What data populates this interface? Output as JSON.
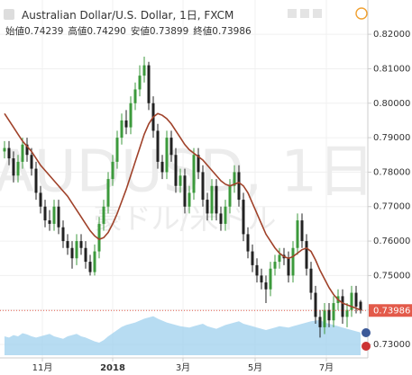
{
  "header": {
    "title": "Australian Dollar/U.S. Dollar, 1日, FXCM",
    "ohlc": [
      {
        "label": "始値",
        "value": "0.74239"
      },
      {
        "label": "高値",
        "value": "0.74290"
      },
      {
        "label": "安値",
        "value": "0.73899"
      },
      {
        "label": "終値",
        "value": "0.73986"
      }
    ]
  },
  "chart_data": {
    "type": "candlestick",
    "watermark": [
      "AUDUSD, 1日",
      "豪ドル/米ドル"
    ],
    "up_color": "#3c9a3c",
    "down_color": "#222222",
    "grid": true,
    "categories": [
      null,
      null,
      null,
      null,
      null,
      null,
      null,
      null,
      null,
      null,
      null,
      null,
      null,
      null,
      null,
      null,
      null,
      null,
      null,
      null,
      null,
      null,
      null,
      null,
      null,
      null,
      null,
      null,
      null,
      null,
      null,
      null,
      null,
      null,
      null,
      null,
      null,
      null,
      null,
      null,
      null,
      null,
      null,
      null,
      null,
      null,
      null,
      null,
      null,
      null,
      null,
      null,
      null,
      null,
      null,
      null,
      null,
      null,
      null,
      null,
      null,
      null,
      null,
      null,
      null,
      null,
      null,
      null,
      null,
      null,
      null,
      null,
      null,
      null,
      null,
      null,
      null,
      null,
      null,
      null
    ],
    "open": [
      0.786,
      0.787,
      0.784,
      0.779,
      0.783,
      0.788,
      0.785,
      0.781,
      0.774,
      0.77,
      0.766,
      0.765,
      0.77,
      0.764,
      0.76,
      0.758,
      0.755,
      0.76,
      0.758,
      0.754,
      0.751,
      0.757,
      0.765,
      0.77,
      0.778,
      0.783,
      0.79,
      0.795,
      0.793,
      0.8,
      0.804,
      0.808,
      0.811,
      0.8,
      0.792,
      0.783,
      0.78,
      0.79,
      0.785,
      0.776,
      0.779,
      0.77,
      0.774,
      0.785,
      0.78,
      0.772,
      0.768,
      0.776,
      0.768,
      0.765,
      0.77,
      0.776,
      0.78,
      0.772,
      0.762,
      0.757,
      0.753,
      0.75,
      0.748,
      0.746,
      0.752,
      0.754,
      0.756,
      0.755,
      0.75,
      0.758,
      0.766,
      0.76,
      0.752,
      0.745,
      0.738,
      0.735,
      0.74,
      0.737,
      0.742,
      0.744,
      0.738,
      0.74,
      0.745,
      0.74239
    ],
    "high": [
      0.789,
      0.789,
      0.786,
      0.785,
      0.79,
      0.79,
      0.787,
      0.783,
      0.776,
      0.772,
      0.769,
      0.772,
      0.772,
      0.766,
      0.762,
      0.76,
      0.762,
      0.762,
      0.76,
      0.756,
      0.759,
      0.767,
      0.772,
      0.78,
      0.785,
      0.792,
      0.797,
      0.798,
      0.802,
      0.806,
      0.811,
      0.8135,
      0.812,
      0.802,
      0.794,
      0.785,
      0.792,
      0.792,
      0.787,
      0.781,
      0.781,
      0.776,
      0.787,
      0.787,
      0.782,
      0.774,
      0.778,
      0.778,
      0.77,
      0.772,
      0.778,
      0.782,
      0.782,
      0.774,
      0.764,
      0.759,
      0.755,
      0.752,
      0.75,
      0.754,
      0.756,
      0.758,
      0.758,
      0.757,
      0.76,
      0.768,
      0.768,
      0.762,
      0.754,
      0.747,
      0.74,
      0.742,
      0.742,
      0.744,
      0.746,
      0.746,
      0.742,
      0.747,
      0.747,
      0.7429
    ],
    "low": [
      0.784,
      0.782,
      0.777,
      0.777,
      0.781,
      0.783,
      0.779,
      0.772,
      0.768,
      0.764,
      0.763,
      0.763,
      0.762,
      0.758,
      0.756,
      0.752,
      0.753,
      0.756,
      0.752,
      0.75,
      0.75,
      0.755,
      0.763,
      0.768,
      0.776,
      0.781,
      0.788,
      0.791,
      0.791,
      0.798,
      0.802,
      0.806,
      0.798,
      0.79,
      0.781,
      0.778,
      0.778,
      0.783,
      0.774,
      0.774,
      0.768,
      0.768,
      0.772,
      0.778,
      0.77,
      0.766,
      0.766,
      0.766,
      0.763,
      0.763,
      0.768,
      0.774,
      0.77,
      0.76,
      0.755,
      0.751,
      0.748,
      0.746,
      0.742,
      0.744,
      0.75,
      0.752,
      0.753,
      0.748,
      0.748,
      0.756,
      0.758,
      0.75,
      0.743,
      0.736,
      0.732,
      0.733,
      0.735,
      0.735,
      0.74,
      0.736,
      0.735,
      0.738,
      0.739,
      0.73899
    ],
    "close": [
      0.787,
      0.784,
      0.779,
      0.783,
      0.788,
      0.785,
      0.781,
      0.774,
      0.77,
      0.766,
      0.765,
      0.77,
      0.764,
      0.76,
      0.758,
      0.755,
      0.76,
      0.758,
      0.754,
      0.751,
      0.757,
      0.765,
      0.77,
      0.778,
      0.783,
      0.79,
      0.795,
      0.793,
      0.8,
      0.804,
      0.808,
      0.811,
      0.8,
      0.792,
      0.783,
      0.78,
      0.79,
      0.785,
      0.776,
      0.779,
      0.77,
      0.774,
      0.785,
      0.78,
      0.772,
      0.768,
      0.776,
      0.768,
      0.765,
      0.77,
      0.776,
      0.78,
      0.772,
      0.762,
      0.757,
      0.753,
      0.75,
      0.748,
      0.746,
      0.752,
      0.754,
      0.756,
      0.755,
      0.75,
      0.758,
      0.766,
      0.76,
      0.752,
      0.745,
      0.738,
      0.735,
      0.74,
      0.737,
      0.742,
      0.744,
      0.738,
      0.74,
      0.745,
      0.741,
      0.73986
    ],
    "ma": {
      "color": "#a0422a",
      "values": [
        0.797,
        0.795,
        0.793,
        0.791,
        0.789,
        0.7875,
        0.786,
        0.784,
        0.782,
        0.7805,
        0.779,
        0.7775,
        0.776,
        0.7745,
        0.773,
        0.771,
        0.769,
        0.767,
        0.765,
        0.763,
        0.7615,
        0.7605,
        0.761,
        0.7625,
        0.765,
        0.768,
        0.7715,
        0.775,
        0.779,
        0.783,
        0.787,
        0.791,
        0.794,
        0.796,
        0.797,
        0.7965,
        0.7955,
        0.794,
        0.792,
        0.79,
        0.788,
        0.7865,
        0.7855,
        0.7845,
        0.7835,
        0.782,
        0.7805,
        0.779,
        0.7775,
        0.7765,
        0.776,
        0.7765,
        0.777,
        0.776,
        0.774,
        0.771,
        0.768,
        0.765,
        0.762,
        0.76,
        0.758,
        0.7565,
        0.7555,
        0.755,
        0.7555,
        0.7565,
        0.7575,
        0.758,
        0.757,
        0.7545,
        0.7515,
        0.749,
        0.7465,
        0.7445,
        0.743,
        0.742,
        0.7415,
        0.741,
        0.7405,
        0.74
      ]
    },
    "volume": {
      "color": "#9fd0ee",
      "ylim": [
        0,
        100
      ],
      "values": [
        30,
        28,
        32,
        30,
        35,
        33,
        30,
        28,
        30,
        32,
        34,
        30,
        28,
        26,
        30,
        32,
        34,
        30,
        28,
        25,
        22,
        20,
        24,
        30,
        35,
        40,
        45,
        48,
        50,
        52,
        55,
        58,
        60,
        62,
        58,
        55,
        52,
        50,
        48,
        46,
        45,
        44,
        46,
        48,
        50,
        46,
        44,
        42,
        45,
        48,
        50,
        52,
        54,
        50,
        48,
        46,
        44,
        42,
        40,
        42,
        44,
        46,
        45,
        44,
        46,
        48,
        50,
        52,
        54,
        55,
        56,
        52,
        50,
        48,
        46,
        44,
        42,
        40,
        38,
        36
      ]
    },
    "ylim": [
      0.7261,
      0.8289
    ],
    "yticks": [
      {
        "value": 0.73,
        "label": "0.73000"
      },
      {
        "value": 0.74,
        "label": "0.74000"
      },
      {
        "value": 0.75,
        "label": "0.75000"
      },
      {
        "value": 0.76,
        "label": "0.76000"
      },
      {
        "value": 0.77,
        "label": "0.77000"
      },
      {
        "value": 0.78,
        "label": "0.78000"
      },
      {
        "value": 0.79,
        "label": "0.79000"
      },
      {
        "value": 0.8,
        "label": "0.80000"
      },
      {
        "value": 0.81,
        "label": "0.81000"
      },
      {
        "value": 0.82,
        "label": "0.82000"
      }
    ],
    "xticks": [
      {
        "value": 8.4,
        "label": "11月"
      },
      {
        "value": 24,
        "label": "2018"
      },
      {
        "value": 39.6,
        "label": "3月"
      },
      {
        "value": 55.6,
        "label": "5月"
      },
      {
        "value": 71.4,
        "label": "7月"
      }
    ],
    "last_price": {
      "value": 0.73986,
      "label": "0.73986",
      "color": "#e35a4a"
    }
  }
}
